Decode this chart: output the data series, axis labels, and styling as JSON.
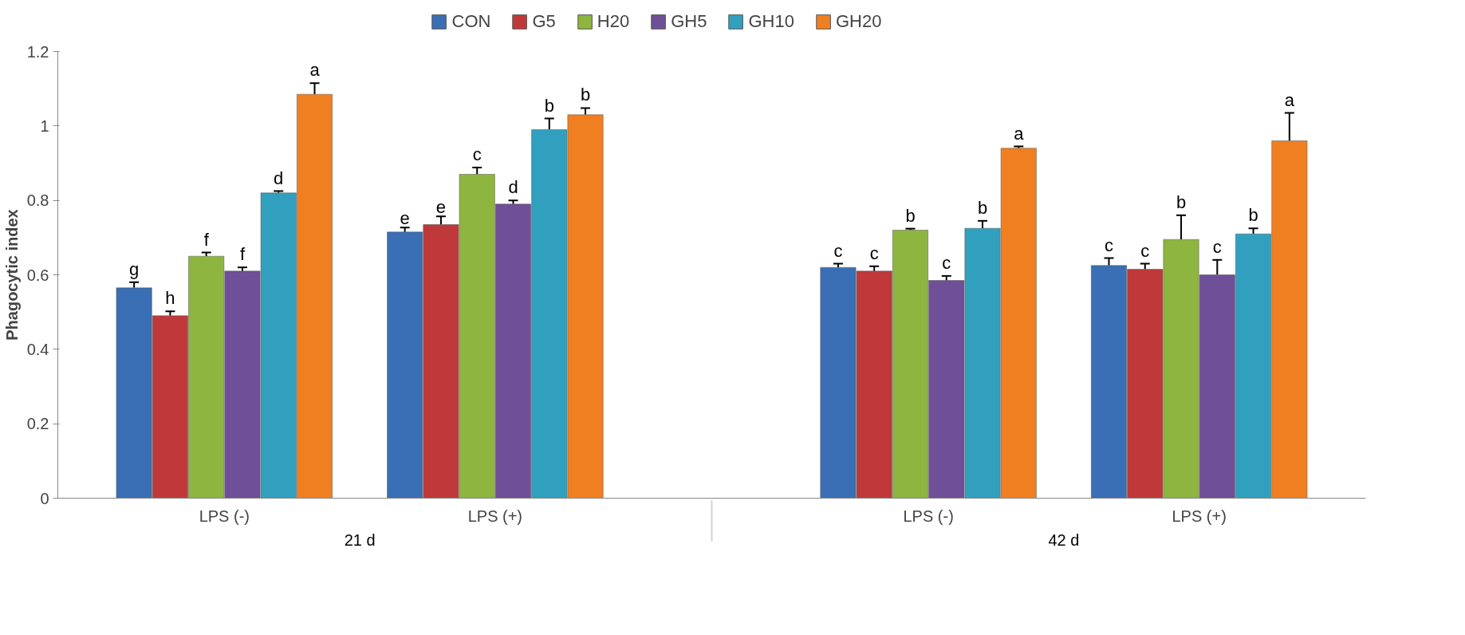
{
  "chart_data": {
    "type": "bar",
    "ylabel": "Phagocytic index",
    "categories": [
      "LPS (-)",
      "LPS (+)",
      "LPS (-)",
      "LPS (+)"
    ],
    "annotations": [
      "21 d",
      "42 d"
    ],
    "series": [
      {
        "name": "CON",
        "color": "#3a6fb5",
        "values": [
          0.565,
          0.715,
          0.62,
          0.625
        ],
        "errors": [
          0.015,
          0.012,
          0.01,
          0.02
        ],
        "value_labels": [
          "g",
          "e",
          "c",
          "c"
        ]
      },
      {
        "name": "G5",
        "color": "#c0393a",
        "values": [
          0.49,
          0.735,
          0.61,
          0.615
        ],
        "errors": [
          0.012,
          0.022,
          0.013,
          0.015
        ],
        "value_labels": [
          "h",
          "e",
          "c",
          "c"
        ]
      },
      {
        "name": "H20",
        "color": "#8db53f",
        "values": [
          0.65,
          0.87,
          0.72,
          0.695
        ],
        "errors": [
          0.01,
          0.018,
          0.004,
          0.065
        ],
        "value_labels": [
          "f",
          "c",
          "b",
          "b"
        ]
      },
      {
        "name": "GH5",
        "color": "#6f4f98",
        "values": [
          0.61,
          0.79,
          0.585,
          0.6
        ],
        "errors": [
          0.01,
          0.01,
          0.012,
          0.04
        ],
        "value_labels": [
          "f",
          "d",
          "c",
          "c"
        ]
      },
      {
        "name": "GH10",
        "color": "#31a0bf",
        "values": [
          0.82,
          0.99,
          0.725,
          0.71
        ],
        "errors": [
          0.005,
          0.03,
          0.02,
          0.015
        ],
        "value_labels": [
          "d",
          "b",
          "b",
          "b"
        ]
      },
      {
        "name": "GH20",
        "color": "#f07f22",
        "values": [
          1.085,
          1.03,
          0.94,
          0.96
        ],
        "errors": [
          0.03,
          0.018,
          0.005,
          0.075
        ],
        "value_labels": [
          "a",
          "b",
          "a",
          "a"
        ]
      }
    ],
    "ylim": [
      0,
      1.2
    ],
    "yticks": [
      0,
      0.2,
      0.4,
      0.6,
      0.8,
      1,
      1.2
    ],
    "legend": "top",
    "grid": false
  }
}
